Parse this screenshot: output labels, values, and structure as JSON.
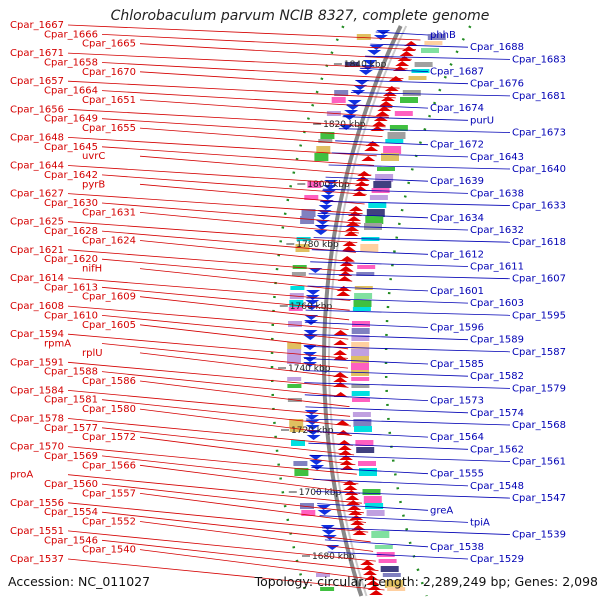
{
  "title": "Chlorobaculum parvum NCIB 8327, complete genome",
  "footer": {
    "accession": "Accession: NC_011027",
    "topology": "Topology: circular; Length: 2,289,249 bp; Genes: 2,098"
  },
  "colors": {
    "forward": "#e00000",
    "reverse": "#1030e0",
    "left_label": "#d40000",
    "right_label": "#0000b4",
    "backbone": "#888888",
    "ticks": "#228b22",
    "cog_palette": [
      "#00e0e0",
      "#8080c0",
      "#40c040",
      "#ff60c0",
      "#e0c060",
      "#404080",
      "#a0a0a0",
      "#80e0a0",
      "#ffd0a0",
      "#c0a0e0"
    ]
  },
  "ticks": [
    {
      "label": "1840 kbp"
    },
    {
      "label": "1820 kbp"
    },
    {
      "label": "1800 kbp"
    },
    {
      "label": "1780 kbp"
    },
    {
      "label": "1760 kbp"
    },
    {
      "label": "1740 kbp"
    },
    {
      "label": "1720 kbp"
    },
    {
      "label": "1700 kbp"
    },
    {
      "label": "1680 kbp"
    }
  ],
  "left_labels": [
    "Cpar_1667",
    "Cpar_1666",
    "Cpar_1665",
    "Cpar_1671",
    "Cpar_1658",
    "Cpar_1670",
    "Cpar_1657",
    "Cpar_1664",
    "Cpar_1651",
    "Cpar_1656",
    "Cpar_1649",
    "Cpar_1655",
    "Cpar_1648",
    "Cpar_1645",
    "uvrC",
    "Cpar_1644",
    "Cpar_1642",
    "pyrB",
    "Cpar_1627",
    "Cpar_1630",
    "Cpar_1631",
    "Cpar_1625",
    "Cpar_1628",
    "Cpar_1624",
    "Cpar_1621",
    "Cpar_1620",
    "nifH",
    "Cpar_1614",
    "Cpar_1613",
    "Cpar_1609",
    "Cpar_1608",
    "Cpar_1610",
    "Cpar_1605",
    "Cpar_1594",
    "rpmA",
    "rplU",
    "Cpar_1591",
    "Cpar_1588",
    "Cpar_1586",
    "Cpar_1584",
    "Cpar_1581",
    "Cpar_1580",
    "Cpar_1578",
    "Cpar_1577",
    "Cpar_1572",
    "Cpar_1570",
    "Cpar_1569",
    "Cpar_1566",
    "proA",
    "Cpar_1560",
    "Cpar_1557",
    "Cpar_1556",
    "Cpar_1554",
    "Cpar_1552",
    "Cpar_1551",
    "Cpar_1546",
    "Cpar_1540",
    "Cpar_1537"
  ],
  "right_labels": [
    "phhB",
    "Cpar_1688",
    "Cpar_1683",
    "Cpar_1687",
    "Cpar_1676",
    "Cpar_1681",
    "Cpar_1674",
    "purU",
    "Cpar_1673",
    "Cpar_1672",
    "Cpar_1643",
    "Cpar_1640",
    "Cpar_1639",
    "Cpar_1638",
    "Cpar_1633",
    "Cpar_1634",
    "Cpar_1632",
    "Cpar_1618",
    "Cpar_1612",
    "Cpar_1611",
    "Cpar_1607",
    "Cpar_1601",
    "Cpar_1603",
    "Cpar_1595",
    "Cpar_1596",
    "Cpar_1589",
    "Cpar_1587",
    "Cpar_1585",
    "Cpar_1582",
    "Cpar_1579",
    "Cpar_1573",
    "Cpar_1574",
    "Cpar_1568",
    "Cpar_1564",
    "Cpar_1562",
    "Cpar_1561",
    "Cpar_1555",
    "Cpar_1548",
    "Cpar_1547",
    "greA",
    "tpiA",
    "Cpar_1539",
    "Cpar_1538",
    "Cpar_1529"
  ]
}
